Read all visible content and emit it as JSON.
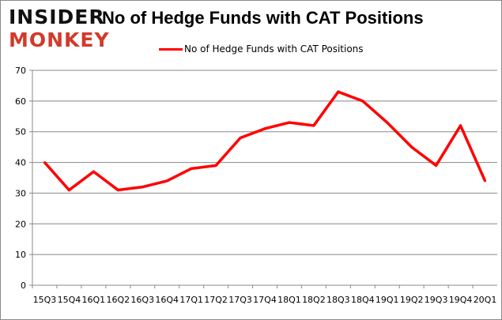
{
  "logo": {
    "line1": "INSIDER",
    "line2": "MONKEY"
  },
  "chart_data": {
    "type": "line",
    "title": "No of Hedge Funds with CAT Positions",
    "categories": [
      "15Q3",
      "15Q4",
      "16Q1",
      "16Q2",
      "16Q3",
      "16Q4",
      "17Q1",
      "17Q2",
      "17Q3",
      "17Q4",
      "18Q1",
      "18Q2",
      "18Q3",
      "18Q4",
      "19Q1",
      "19Q2",
      "19Q3",
      "19Q4",
      "20Q1"
    ],
    "series": [
      {
        "name": "No of Hedge Funds with CAT Positions",
        "color": "#ff0000",
        "values": [
          40,
          31,
          37,
          31,
          32,
          34,
          38,
          39,
          48,
          51,
          53,
          52,
          63,
          60,
          53,
          45,
          39,
          52,
          34
        ]
      }
    ],
    "ylim": [
      0,
      70
    ],
    "yticks": [
      0,
      10,
      20,
      30,
      40,
      50,
      60,
      70
    ],
    "grid": true,
    "legend": "top-center",
    "xlabel": "",
    "ylabel": ""
  }
}
